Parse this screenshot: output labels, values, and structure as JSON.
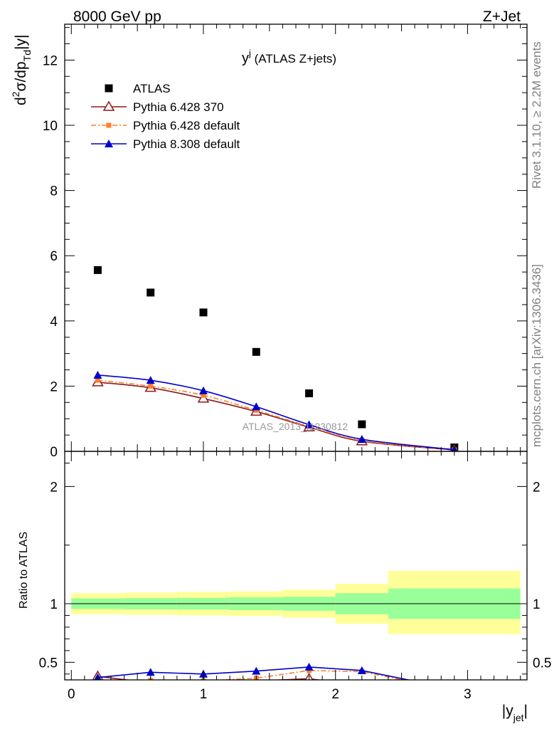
{
  "header": {
    "left": "8000 GeV pp",
    "right": "Z+Jet"
  },
  "side_text": {
    "rivet": "Rivet 3.1.10, ≥ 2.2M events",
    "source": "mcplots.cern.ch [arXiv:1306.3436]"
  },
  "watermark": "ATLAS_2013_I1230812",
  "chart_data": {
    "type": "scatter",
    "title_main": "y",
    "title_sup": "j",
    "title_tail": " (ATLAS Z+jets)",
    "ylabel_main": "d",
    "ylabel_sup": "2",
    "ylabel_mid": "σ/dp",
    "ylabel_sub": "Td",
    "ylabel_tail": "|y|",
    "xlabel_main": "|y",
    "xlabel_sub": "jet",
    "xlabel_tail": "|",
    "ratio_ylabel": "Ratio to ATLAS",
    "xlim": [
      -0.05,
      3.45
    ],
    "ylim": [
      0,
      13.1
    ],
    "ratio_ylim": [
      0.35,
      2.3
    ],
    "x_ticks": [
      "0",
      "1",
      "2",
      "3"
    ],
    "y_ticks": [
      "0",
      "2",
      "4",
      "6",
      "8",
      "10",
      "12"
    ],
    "ratio_ticks": [
      "0.5",
      "1",
      "2"
    ],
    "legend_position": "top-left",
    "series": [
      {
        "name": "ATLAS",
        "marker": "square",
        "color": "#000000",
        "x": [
          0.2,
          0.6,
          1.0,
          1.4,
          1.8,
          2.2,
          2.9
        ],
        "y": [
          5.56,
          4.87,
          4.26,
          3.05,
          1.78,
          0.83,
          0.12
        ]
      },
      {
        "name": "Pythia 6.428 370",
        "marker": "open-triangle",
        "color": "#8b1a1a",
        "x": [
          0.2,
          0.6,
          1.0,
          1.4,
          1.8,
          2.2,
          2.9
        ],
        "y": [
          2.12,
          1.95,
          1.62,
          1.22,
          0.74,
          0.31,
          0.04
        ],
        "ratio": [
          0.38,
          0.325,
          0.33,
          0.34,
          0.36,
          0.3,
          0.23
        ]
      },
      {
        "name": "Pythia 6.428 default",
        "marker": "square-small",
        "color": "#ff7f2a",
        "x": [
          0.2,
          0.6,
          1.0,
          1.4,
          1.8,
          2.2,
          2.9
        ],
        "y": [
          2.18,
          2.0,
          1.72,
          1.26,
          0.77,
          0.33,
          0.045
        ],
        "ratio": [
          0.34,
          0.345,
          0.34,
          0.365,
          0.43,
          0.42,
          0.26
        ]
      },
      {
        "name": "Pythia 8.308 default",
        "marker": "triangle",
        "color": "#0000cc",
        "x": [
          0.2,
          0.6,
          1.0,
          1.4,
          1.8,
          2.2,
          2.9
        ],
        "y": [
          2.34,
          2.18,
          1.86,
          1.37,
          0.82,
          0.37,
          0.05
        ],
        "ratio": [
          0.37,
          0.415,
          0.4,
          0.425,
          0.46,
          0.43,
          0.27
        ]
      }
    ],
    "uncertainty_bands": {
      "x_edges": [
        0.0,
        0.4,
        0.8,
        1.2,
        1.6,
        2.0,
        2.4,
        3.4
      ],
      "inner_up": [
        1.045,
        1.048,
        1.05,
        1.055,
        1.06,
        1.09,
        1.13
      ],
      "inner_down": [
        0.955,
        0.952,
        0.95,
        0.945,
        0.94,
        0.91,
        0.87
      ],
      "outer_up": [
        1.09,
        1.095,
        1.1,
        1.105,
        1.12,
        1.17,
        1.28
      ],
      "outer_down": [
        0.91,
        0.905,
        0.9,
        0.895,
        0.88,
        0.83,
        0.74
      ],
      "inner_color": "#99ff99",
      "outer_color": "#ffff99"
    }
  }
}
